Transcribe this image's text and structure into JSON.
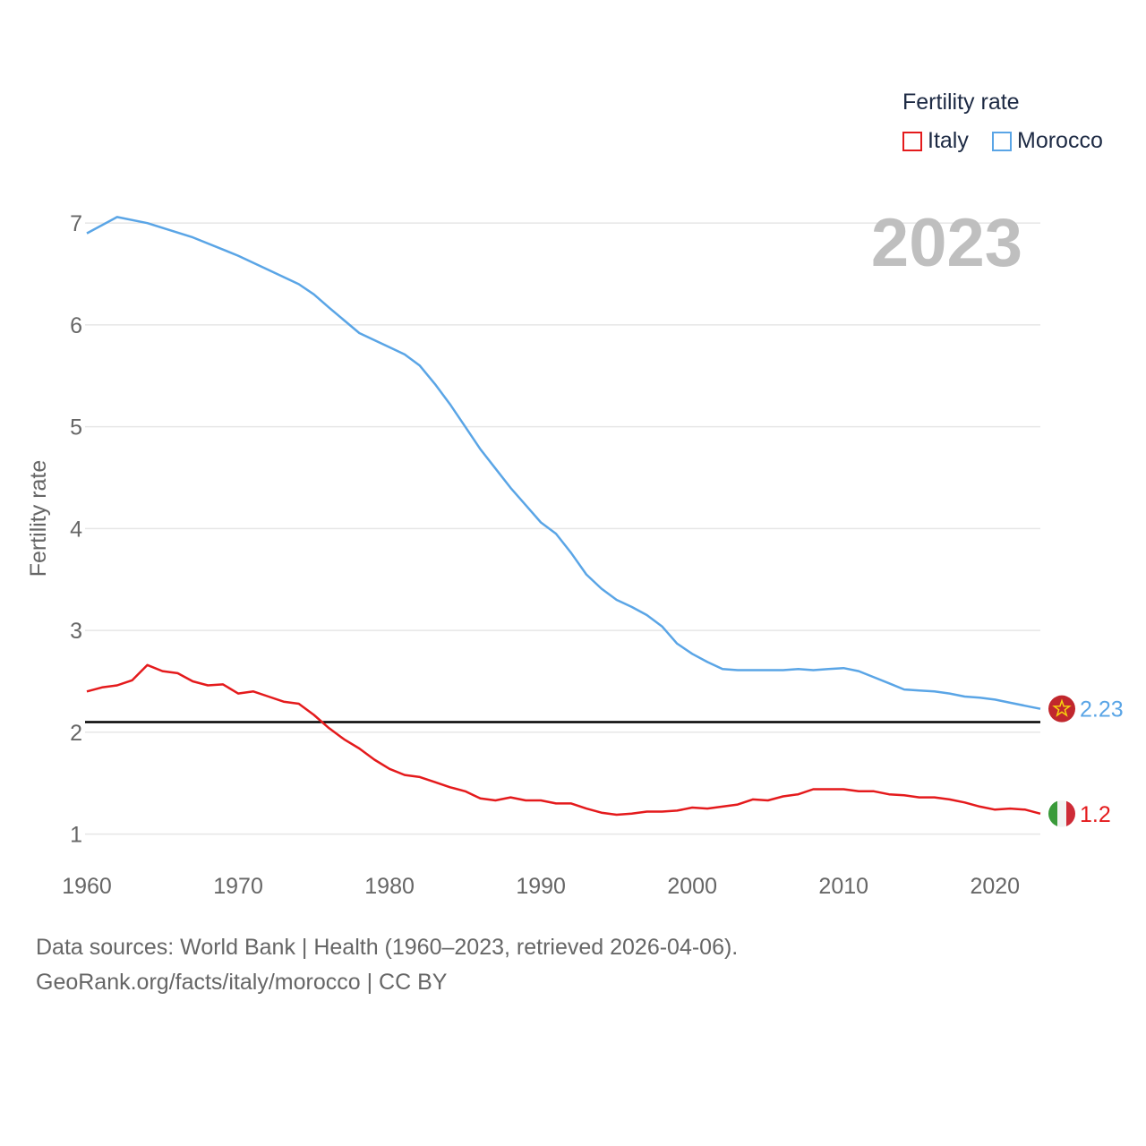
{
  "legend": {
    "title": "Fertility rate",
    "items": [
      {
        "name": "Italy",
        "color": "#e41a1c"
      },
      {
        "name": "Morocco",
        "color": "#5aa5e6"
      }
    ]
  },
  "year_label": "2023",
  "source": {
    "line1": "Data sources: World Bank | Health (1960–2023, retrieved 2026-04-06).",
    "line2": "GeoRank.org/facts/italy/morocco | CC BY"
  },
  "chart_data": {
    "type": "line",
    "title": "",
    "xlabel": "",
    "ylabel": "Fertility rate",
    "xlim": [
      1960,
      2023
    ],
    "ylim": [
      0.75,
      7.45
    ],
    "x_ticks": [
      1960,
      1970,
      1980,
      1990,
      2000,
      2010,
      2020
    ],
    "y_ticks": [
      1,
      2,
      3,
      4,
      5,
      6,
      7
    ],
    "reference_line": {
      "y": 2.1,
      "color": "#000000"
    },
    "series": [
      {
        "name": "Morocco",
        "color": "#5aa5e6",
        "end_label": "2.23",
        "end_icon": "morocco-flag-icon",
        "x": [
          1960,
          1962,
          1964,
          1967,
          1970,
          1972,
          1974,
          1975,
          1976,
          1978,
          1980,
          1981,
          1982,
          1983,
          1984,
          1985,
          1986,
          1987,
          1988,
          1989,
          1990,
          1991,
          1992,
          1993,
          1994,
          1995,
          1996,
          1997,
          1998,
          1999,
          2000,
          2001,
          2002,
          2003,
          2004,
          2005,
          2006,
          2007,
          2008,
          2009,
          2010,
          2011,
          2012,
          2013,
          2014,
          2015,
          2016,
          2017,
          2018,
          2019,
          2020,
          2021,
          2022,
          2023
        ],
        "values": [
          6.9,
          7.06,
          7.0,
          6.86,
          6.68,
          6.54,
          6.4,
          6.3,
          6.17,
          5.92,
          5.78,
          5.71,
          5.6,
          5.42,
          5.22,
          5.0,
          4.78,
          4.59,
          4.4,
          4.23,
          4.06,
          3.95,
          3.76,
          3.55,
          3.41,
          3.3,
          3.23,
          3.15,
          3.04,
          2.87,
          2.77,
          2.69,
          2.62,
          2.61,
          2.61,
          2.61,
          2.61,
          2.62,
          2.61,
          2.62,
          2.63,
          2.6,
          2.54,
          2.48,
          2.42,
          2.41,
          2.4,
          2.38,
          2.35,
          2.34,
          2.32,
          2.29,
          2.26,
          2.23
        ]
      },
      {
        "name": "Italy",
        "color": "#e41a1c",
        "end_label": "1.2",
        "end_icon": "italy-flag-icon",
        "x": [
          1960,
          1961,
          1962,
          1963,
          1964,
          1965,
          1966,
          1967,
          1968,
          1969,
          1970,
          1971,
          1972,
          1973,
          1974,
          1975,
          1976,
          1977,
          1978,
          1979,
          1980,
          1981,
          1982,
          1983,
          1984,
          1985,
          1986,
          1987,
          1988,
          1989,
          1990,
          1991,
          1992,
          1993,
          1994,
          1995,
          1996,
          1997,
          1998,
          1999,
          2000,
          2001,
          2002,
          2003,
          2004,
          2005,
          2006,
          2007,
          2008,
          2009,
          2010,
          2011,
          2012,
          2013,
          2014,
          2015,
          2016,
          2017,
          2018,
          2019,
          2020,
          2021,
          2022,
          2023
        ],
        "values": [
          2.4,
          2.44,
          2.46,
          2.51,
          2.66,
          2.6,
          2.58,
          2.5,
          2.46,
          2.47,
          2.38,
          2.4,
          2.35,
          2.3,
          2.28,
          2.17,
          2.04,
          1.93,
          1.84,
          1.73,
          1.64,
          1.58,
          1.56,
          1.51,
          1.46,
          1.42,
          1.35,
          1.33,
          1.36,
          1.33,
          1.33,
          1.3,
          1.3,
          1.25,
          1.21,
          1.19,
          1.2,
          1.22,
          1.22,
          1.23,
          1.26,
          1.25,
          1.27,
          1.29,
          1.34,
          1.33,
          1.37,
          1.39,
          1.44,
          1.44,
          1.44,
          1.42,
          1.42,
          1.39,
          1.38,
          1.36,
          1.36,
          1.34,
          1.31,
          1.27,
          1.24,
          1.25,
          1.24,
          1.2
        ]
      }
    ]
  }
}
